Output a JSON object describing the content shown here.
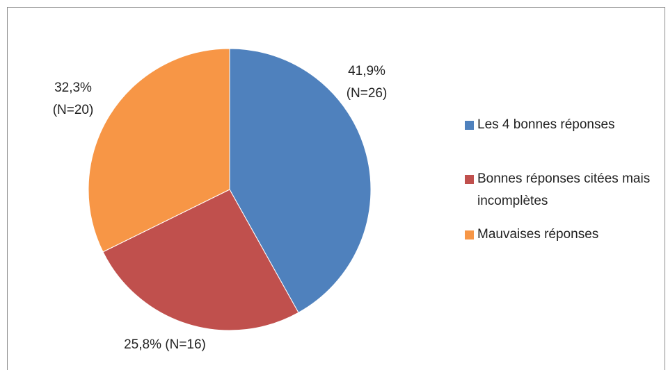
{
  "chart_data": {
    "type": "pie",
    "categories": [
      "Les 4 bonnes réponses",
      "Bonnes réponses citées mais incomplètes",
      "Mauvaises réponses"
    ],
    "values": [
      41.9,
      25.8,
      32.3
    ],
    "value_labels": [
      "41,9% (N=26)",
      "25,8% (N=16)",
      "32,3% (N=20)"
    ],
    "colors": [
      "#4f81bd",
      "#c0504d",
      "#f79646"
    ],
    "legend": "right"
  }
}
